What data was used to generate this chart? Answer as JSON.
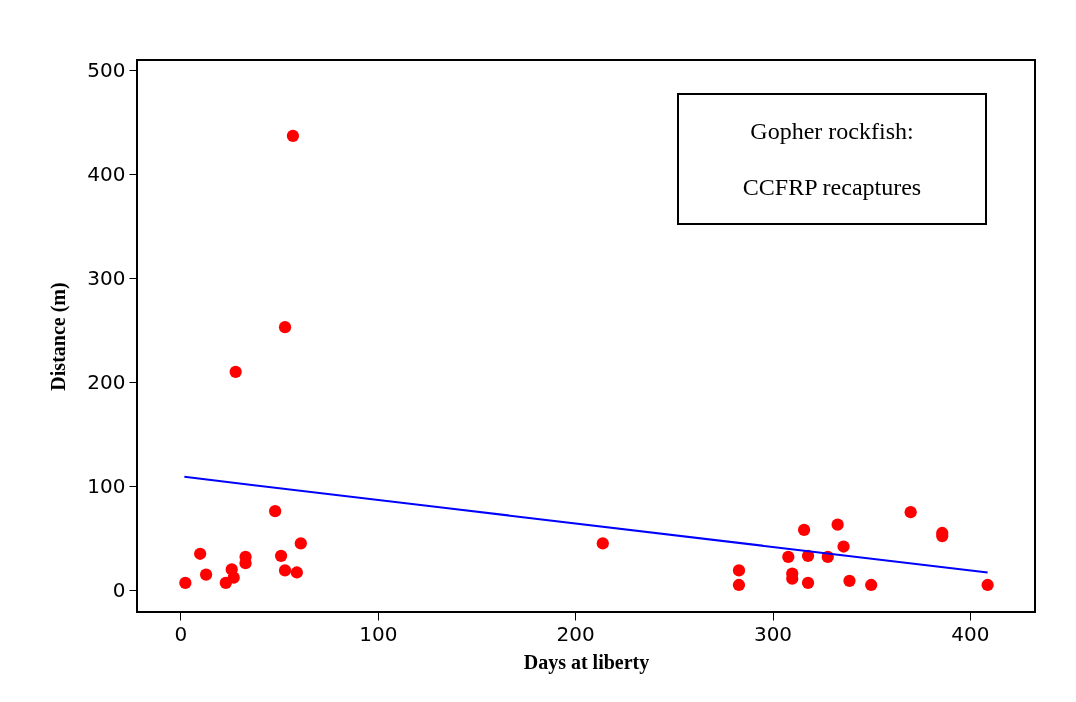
{
  "chart_data": {
    "type": "scatter",
    "xlabel": "Days at liberty",
    "ylabel": "Distance (m)",
    "xlim": [
      -22,
      433
    ],
    "ylim": [
      -21,
      510
    ],
    "xticks": [
      0,
      100,
      200,
      300,
      400
    ],
    "yticks": [
      0,
      100,
      200,
      300,
      400,
      500
    ],
    "grid": false,
    "annotations": [
      "Gopher rockfish:",
      "CCFRP recaptures"
    ],
    "series": [
      {
        "marker": "circle",
        "color": "#ff0000",
        "x": [
          2.5,
          10,
          13,
          23,
          26,
          27,
          28,
          33,
          33,
          48,
          51,
          53,
          53,
          57,
          59,
          61,
          214,
          283,
          283,
          308,
          310,
          310,
          316,
          318,
          318,
          328,
          333,
          336,
          339,
          350,
          370,
          386,
          386,
          409
        ],
        "values": [
          7,
          35,
          15,
          7,
          20,
          12,
          210,
          32,
          26,
          76,
          33,
          253,
          19,
          437,
          17,
          45,
          45,
          19,
          5,
          32,
          16,
          11,
          58,
          33,
          7,
          32,
          63,
          42,
          9,
          5,
          75,
          52,
          55,
          5
        ]
      },
      {
        "type": "line",
        "color": "#0000ff",
        "x": [
          2,
          409
        ],
        "values": [
          109,
          17
        ]
      }
    ]
  }
}
